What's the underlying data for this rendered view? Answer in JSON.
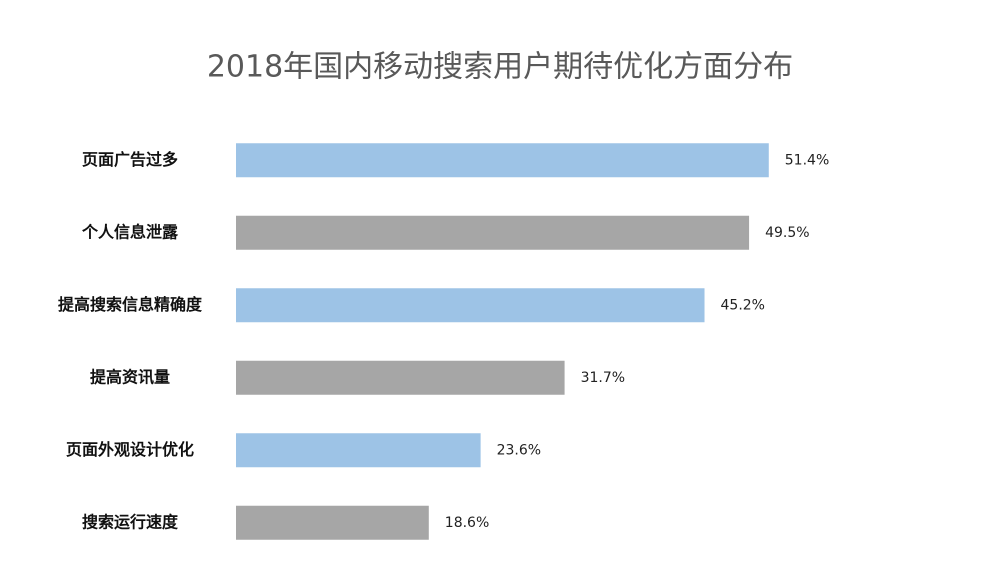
{
  "chart_data": {
    "type": "barh",
    "title": "2018年国内移动搜索用户期待优化方面分布",
    "categories": [
      "页面广告过多",
      "个人信息泄露",
      "提高搜索信息精确度",
      "提高资讯量",
      "页面外观设计优化",
      "搜索运行速度"
    ],
    "values": [
      51.4,
      49.5,
      45.2,
      31.7,
      23.6,
      18.6
    ],
    "value_labels": [
      "51.4%",
      "49.5%",
      "45.2%",
      "31.7%",
      "23.6%",
      "18.6%"
    ],
    "colors": [
      "#9dc3e6",
      "#a6a6a6",
      "#9dc3e6",
      "#a6a6a6",
      "#9dc3e6",
      "#a6a6a6"
    ],
    "xlim": [
      0,
      52
    ]
  }
}
